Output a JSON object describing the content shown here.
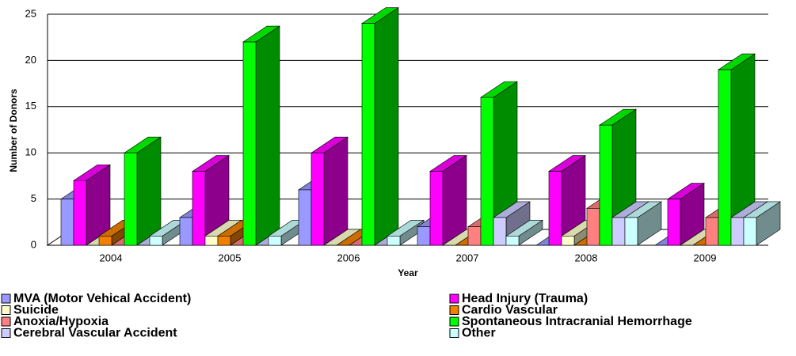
{
  "chart_data": {
    "type": "bar3d",
    "x_label": "Year",
    "y_label": "Number of Donors",
    "categories": [
      "2004",
      "2005",
      "2006",
      "2007",
      "2008",
      "2009"
    ],
    "series": [
      {
        "name": "MVA (Motor Vehical Accident)",
        "color": "#9999ff",
        "values": [
          5,
          3,
          6,
          2,
          0,
          0
        ]
      },
      {
        "name": "Head Injury (Trauma)",
        "color": "#ff00ff",
        "values": [
          7,
          8,
          10,
          8,
          8,
          5
        ]
      },
      {
        "name": "Suicide",
        "color": "#ffffcc",
        "values": [
          0,
          1,
          0,
          0,
          1,
          0
        ]
      },
      {
        "name": "Cardio Vascular",
        "color": "#f08000",
        "values": [
          1,
          1,
          0,
          0,
          0,
          0
        ]
      },
      {
        "name": "Anoxia/Hypoxia",
        "color": "#ff8080",
        "values": [
          0,
          0,
          0,
          2,
          4,
          3
        ]
      },
      {
        "name": "Spontaneous Intracranial Hemorrhage",
        "color": "#00ff00",
        "values": [
          10,
          22,
          24,
          16,
          13,
          19
        ]
      },
      {
        "name": "Cerebral Vascular Accident",
        "color": "#ccccff",
        "values": [
          0,
          0,
          0,
          3,
          3,
          3
        ]
      },
      {
        "name": "Other",
        "color": "#ccffff",
        "values": [
          1,
          1,
          1,
          1,
          3,
          3
        ]
      }
    ],
    "ylim": [
      0,
      25
    ],
    "yticks": [
      0,
      5,
      10,
      15,
      20,
      25
    ],
    "grid": true
  }
}
